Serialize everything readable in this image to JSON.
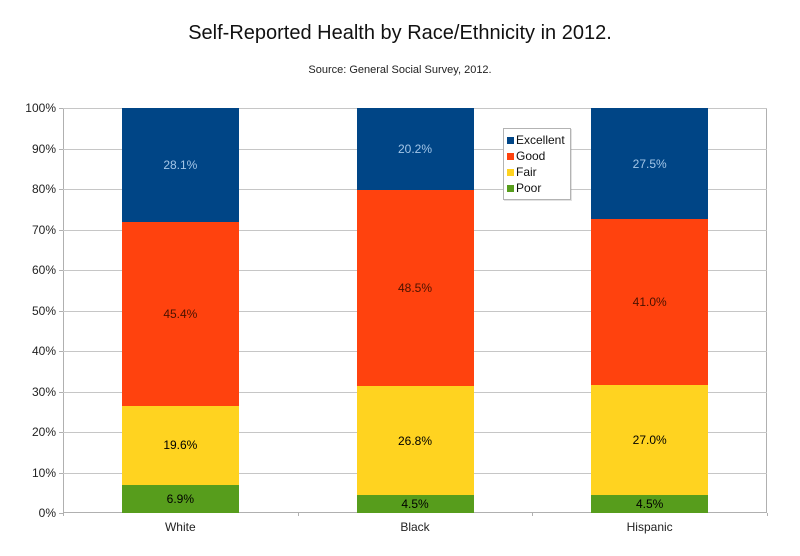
{
  "title": "Self-Reported Health by Race/Ethnicity in 2012.",
  "subtitle": "Source: General Social Survey, 2012.",
  "colors": {
    "background": "#ffffff",
    "frame": "#b0b0b0",
    "gridline": "#c6c6c6",
    "excellent": "#004586",
    "good": "#FF420E",
    "fair": "#FFD320",
    "poor": "#579D1C"
  },
  "y_axis": {
    "tick_labels": [
      "100%",
      "90%",
      "80%",
      "70%",
      "60%",
      "50%",
      "40%",
      "30%",
      "20%",
      "10%",
      "0%"
    ]
  },
  "x_axis": {
    "categories": [
      "White",
      "Black",
      "Hispanic"
    ]
  },
  "legend": {
    "items": [
      "Excellent",
      "Good",
      "Fair",
      "Poor"
    ]
  },
  "chart_data": {
    "type": "bar",
    "subtype": "stacked-100-percent-column",
    "title": "Self-Reported Health by Race/Ethnicity in 2012.",
    "subtitle": "Source: General Social Survey, 2012.",
    "categories": [
      "White",
      "Black",
      "Hispanic"
    ],
    "series": [
      {
        "name": "Poor",
        "color": "#579D1C",
        "label_color": "#000000",
        "values": [
          6.9,
          4.5,
          4.5
        ],
        "labels": [
          "6.9%",
          "4.5%",
          "4.5%"
        ]
      },
      {
        "name": "Fair",
        "color": "#FFD320",
        "label_color": "#000000",
        "values": [
          19.6,
          26.8,
          27.0
        ],
        "labels": [
          "19.6%",
          "26.8%",
          "27.0%"
        ]
      },
      {
        "name": "Good",
        "color": "#FF420E",
        "label_color": "#4a1200",
        "values": [
          45.4,
          48.5,
          41.0
        ],
        "labels": [
          "45.4%",
          "48.5%",
          "41.0%"
        ]
      },
      {
        "name": "Excellent",
        "color": "#004586",
        "label_color": "#a3c6e8",
        "values": [
          28.1,
          20.2,
          27.5
        ],
        "labels": [
          "28.1%",
          "20.2%",
          "27.5%"
        ]
      }
    ],
    "stack_order_bottom_to_top": [
      "Poor",
      "Fair",
      "Good",
      "Excellent"
    ],
    "legend_order": [
      "Excellent",
      "Good",
      "Fair",
      "Poor"
    ],
    "ylim": [
      0,
      100
    ],
    "y_tick_step": 10,
    "grid": true,
    "legend_position": "inside-right-upper"
  }
}
